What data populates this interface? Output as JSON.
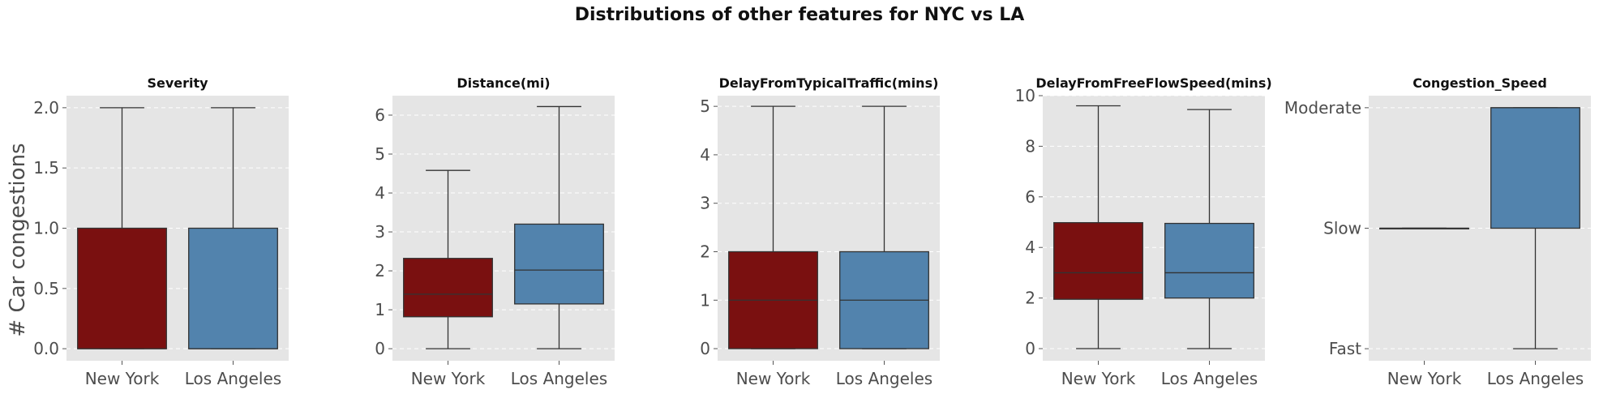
{
  "figure": {
    "title": "Distributions of other features for NYC vs LA",
    "ylabel": "# Car congestions"
  },
  "colors": {
    "new_york": "#7a1010",
    "los_angeles": "#5283ad",
    "panel_bg": "#e5e5e5",
    "grid": "#ffffff",
    "line": "#333333"
  },
  "chart_data": [
    {
      "type": "box",
      "title": "Severity",
      "categories": [
        "New York",
        "Los Angeles"
      ],
      "ylim": [
        -0.1,
        2.1
      ],
      "yticks": [
        0.0,
        0.5,
        1.0,
        1.5,
        2.0
      ],
      "ytick_labels": [
        "0.0",
        "0.5",
        "1.0",
        "1.5",
        "2.0"
      ],
      "grid": true,
      "boxes": [
        {
          "name": "New York",
          "whisker_low": 0,
          "q1": 0,
          "median": 0,
          "q3": 1,
          "whisker_high": 2
        },
        {
          "name": "Los Angeles",
          "whisker_low": 0,
          "q1": 0,
          "median": 0,
          "q3": 1,
          "whisker_high": 2
        }
      ]
    },
    {
      "type": "box",
      "title": "Distance(mi)",
      "categories": [
        "New York",
        "Los Angeles"
      ],
      "ylim": [
        -0.31,
        6.5
      ],
      "yticks": [
        0,
        1,
        2,
        3,
        4,
        5,
        6
      ],
      "ytick_labels": [
        "0",
        "1",
        "2",
        "3",
        "4",
        "5",
        "6"
      ],
      "grid": true,
      "boxes": [
        {
          "name": "New York",
          "whisker_low": 0,
          "q1": 0.82,
          "median": 1.4,
          "q3": 2.32,
          "whisker_high": 4.58
        },
        {
          "name": "Los Angeles",
          "whisker_low": 0,
          "q1": 1.15,
          "median": 2.02,
          "q3": 3.2,
          "whisker_high": 6.22
        }
      ]
    },
    {
      "type": "box",
      "title": "DelayFromTypicalTraffic(mins)",
      "categories": [
        "New York",
        "Los Angeles"
      ],
      "ylim": [
        -0.25,
        5.22
      ],
      "yticks": [
        0,
        1,
        2,
        3,
        4,
        5
      ],
      "ytick_labels": [
        "0",
        "1",
        "2",
        "3",
        "4",
        "5"
      ],
      "grid": true,
      "boxes": [
        {
          "name": "New York",
          "whisker_low": 0,
          "q1": 0,
          "median": 1,
          "q3": 2,
          "whisker_high": 5
        },
        {
          "name": "Los Angeles",
          "whisker_low": 0,
          "q1": 0,
          "median": 1,
          "q3": 2,
          "whisker_high": 5
        }
      ]
    },
    {
      "type": "box",
      "title": "DelayFromFreeFlowSpeed(mins)",
      "categories": [
        "New York",
        "Los Angeles"
      ],
      "ylim": [
        -0.48,
        10.0
      ],
      "yticks": [
        0,
        2,
        4,
        6,
        8,
        10
      ],
      "ytick_labels": [
        "0",
        "2",
        "4",
        "6",
        "8",
        "10"
      ],
      "grid": true,
      "boxes": [
        {
          "name": "New York",
          "whisker_low": 0,
          "q1": 1.95,
          "median": 3.0,
          "q3": 4.98,
          "whisker_high": 9.6
        },
        {
          "name": "Los Angeles",
          "whisker_low": 0,
          "q1": 2.0,
          "median": 3.0,
          "q3": 4.95,
          "whisker_high": 9.45
        }
      ]
    },
    {
      "type": "box",
      "title": "Congestion_Speed",
      "categories": [
        "New York",
        "Los Angeles"
      ],
      "ylim": [
        -0.1,
        2.1
      ],
      "yticks": [
        0,
        1,
        2
      ],
      "ytick_labels": [
        "Fast",
        "Slow",
        "Moderate"
      ],
      "grid": true,
      "boxes": [
        {
          "name": "New York",
          "whisker_low": 1,
          "q1": 1,
          "median": 1,
          "q3": 1,
          "whisker_high": 1
        },
        {
          "name": "Los Angeles",
          "whisker_low": 0,
          "q1": 1,
          "median": 2,
          "q3": 2,
          "whisker_high": 2
        }
      ]
    }
  ]
}
